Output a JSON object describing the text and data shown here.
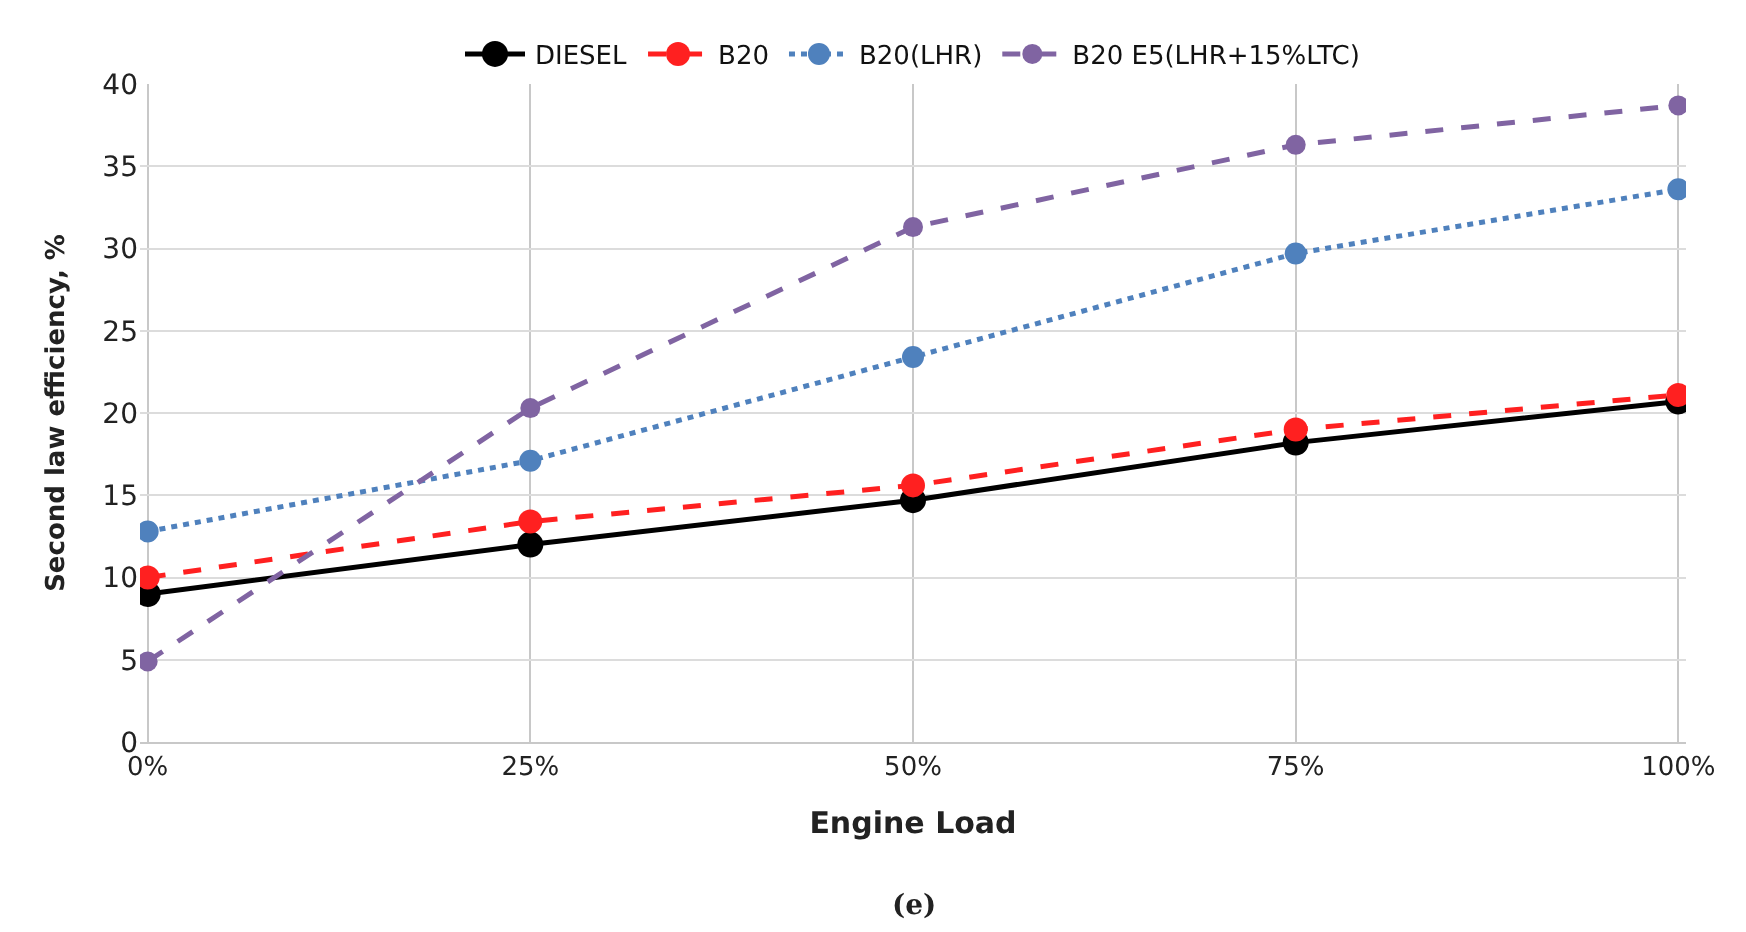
{
  "chart_data": {
    "type": "line",
    "xlabel": "Engine Load",
    "ylabel": "Second law efficiency, %",
    "categories": [
      "0%",
      "25%",
      "50%",
      "75%",
      "100%"
    ],
    "series": [
      {
        "name": "DIESEL",
        "color": "#000000",
        "line_style": "solid",
        "values": [
          9,
          12,
          14.7,
          18.2,
          20.7
        ]
      },
      {
        "name": "B20",
        "color": "#ff2020",
        "line_style": "dashed",
        "values": [
          10,
          13.4,
          15.6,
          19,
          21.1
        ]
      },
      {
        "name": "B20(LHR)",
        "color": "#4f81bd",
        "line_style": "dotted",
        "values": [
          12.8,
          17.1,
          23.4,
          29.7,
          33.6
        ]
      },
      {
        "name": "B20 E5(LHR+15%LTC)",
        "color": "#8064a2",
        "line_style": "dashed",
        "values": [
          4.9,
          20.3,
          31.3,
          36.3,
          38.7
        ]
      }
    ],
    "ylim": [
      0,
      40
    ],
    "yticks": [
      0,
      5,
      10,
      15,
      20,
      25,
      30,
      35,
      40
    ],
    "grid": true,
    "legend": "top",
    "marker": "circle",
    "annotations": [
      "(e)"
    ]
  }
}
